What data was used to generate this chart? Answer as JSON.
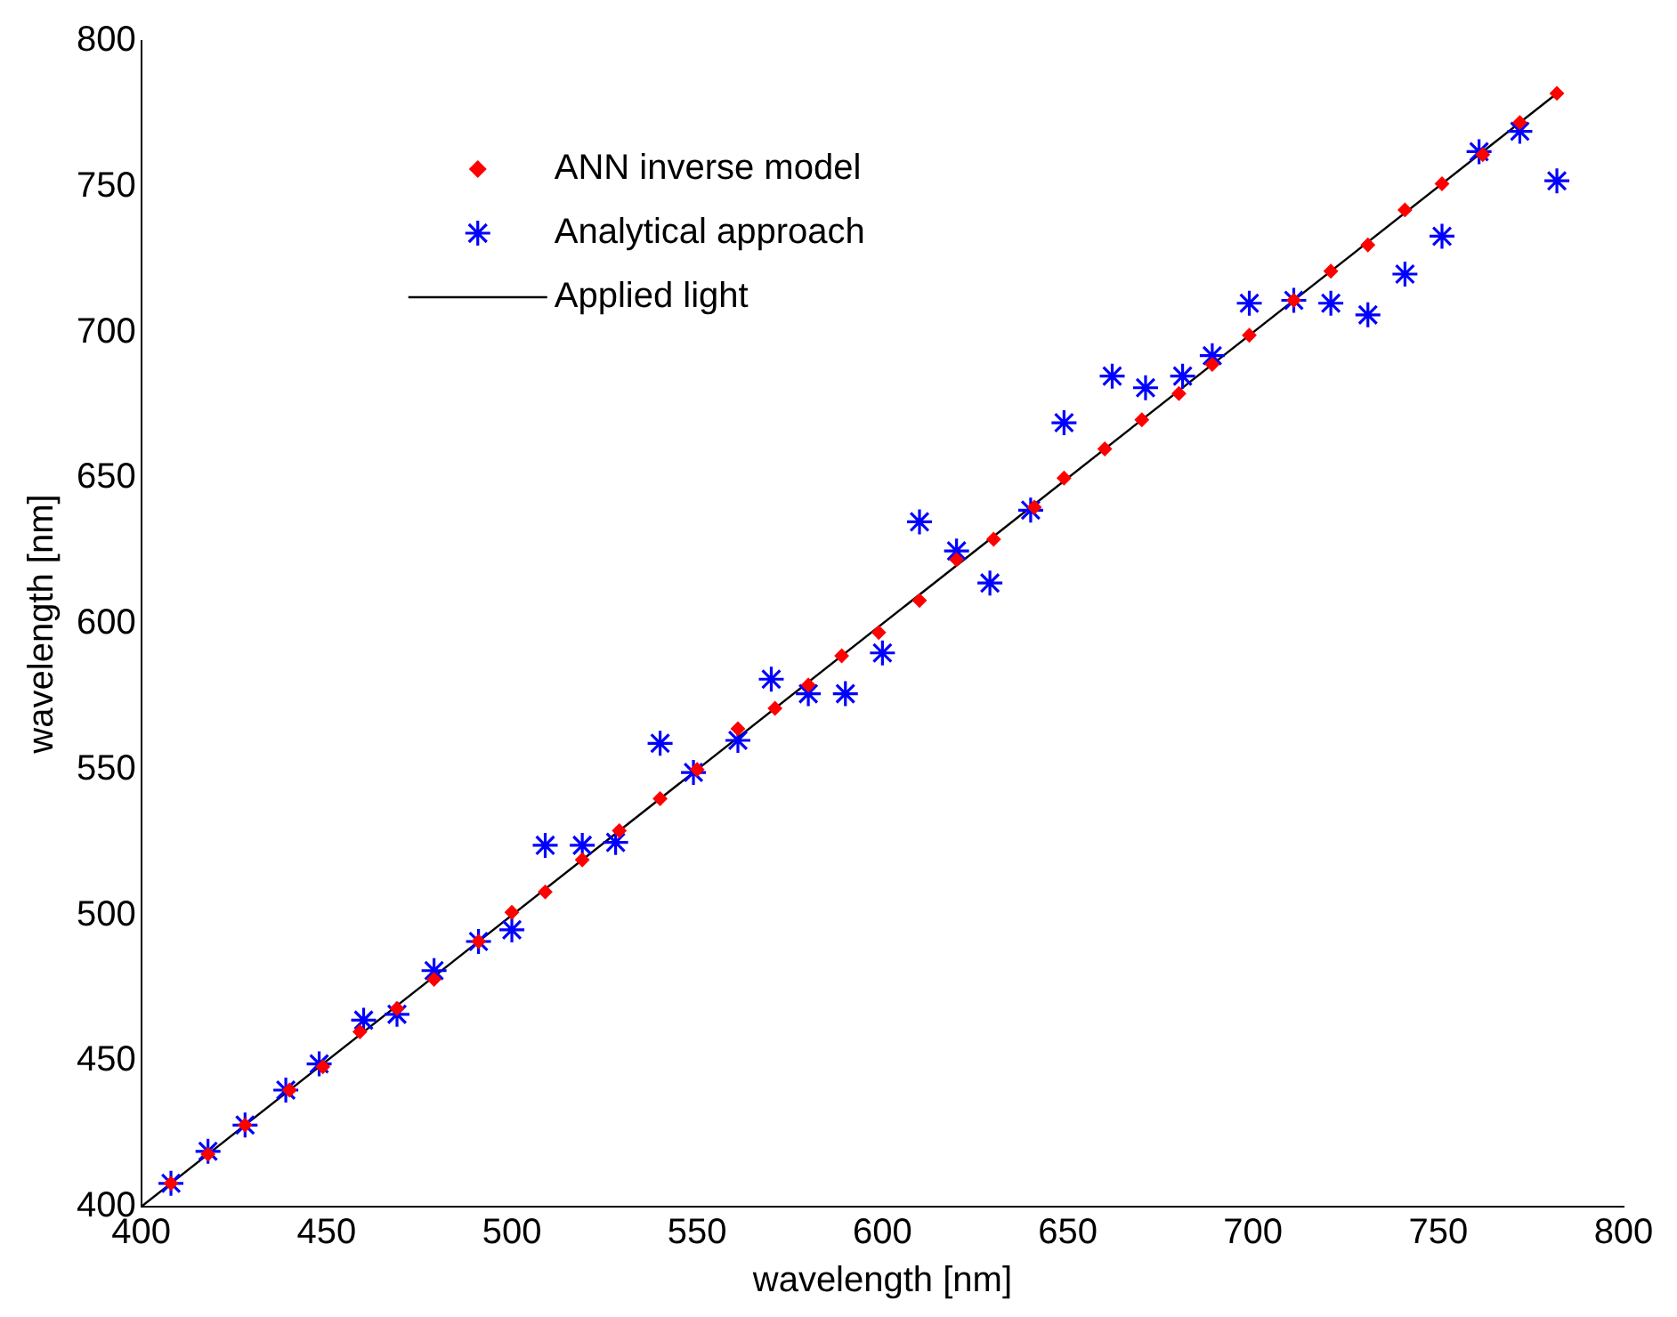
{
  "chart_data": {
    "type": "scatter",
    "xlabel": "wavelength [nm]",
    "ylabel": "wavelength [nm]",
    "xlim": [
      400,
      800
    ],
    "ylim": [
      400,
      800
    ],
    "xticks": [
      400,
      450,
      500,
      550,
      600,
      650,
      700,
      750,
      800
    ],
    "yticks": [
      400,
      450,
      500,
      550,
      600,
      650,
      700,
      750,
      800
    ],
    "grid": false,
    "legend": "top left",
    "series": [
      {
        "name": "ANN inverse model",
        "color": "#ff0000",
        "marker": "diamond",
        "x": [
          408,
          418,
          428,
          440,
          449,
          459,
          469,
          479,
          491,
          500,
          509,
          519,
          529,
          540,
          550,
          561,
          571,
          580,
          589,
          599,
          610,
          620,
          630,
          641,
          649,
          660,
          670,
          680,
          689,
          699,
          711,
          721,
          731,
          741,
          751,
          762,
          772,
          782
        ],
        "values": [
          408,
          418,
          428,
          440,
          448,
          460,
          468,
          478,
          491,
          501,
          508,
          519,
          529,
          540,
          550,
          564,
          571,
          579,
          589,
          597,
          608,
          622,
          629,
          640,
          650,
          660,
          670,
          679,
          689,
          699,
          711,
          721,
          730,
          742,
          751,
          761,
          772,
          782
        ]
      },
      {
        "name": "Analytical approach",
        "color": "#0000ff",
        "marker": "cross",
        "x": [
          408,
          418,
          428,
          439,
          448,
          460,
          469,
          479,
          491,
          500,
          509,
          519,
          528,
          540,
          549,
          561,
          570,
          580,
          590,
          600,
          610,
          620,
          629,
          640,
          649,
          662,
          671,
          681,
          689,
          699,
          711,
          721,
          731,
          741,
          751,
          761,
          772,
          782
        ],
        "values": [
          408,
          419,
          428,
          440,
          449,
          464,
          466,
          481,
          491,
          495,
          524,
          524,
          525,
          559,
          549,
          560,
          581,
          576,
          576,
          590,
          635,
          625,
          614,
          639,
          669,
          685,
          681,
          685,
          692,
          710,
          711,
          710,
          706,
          720,
          733,
          762,
          769,
          752
        ]
      },
      {
        "name": "Applied light",
        "type": "line",
        "color": "#000000",
        "marker": "none",
        "line_style": "solid",
        "x": [
          400,
          782
        ],
        "values": [
          400,
          782
        ]
      }
    ]
  }
}
